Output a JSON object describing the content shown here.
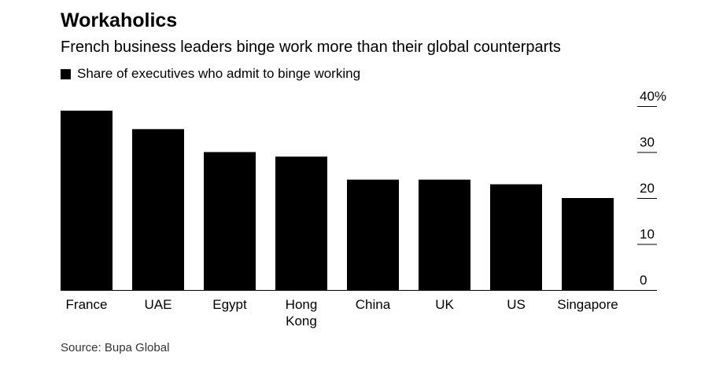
{
  "title": "Workaholics",
  "subtitle": "French business leaders binge work more than their global counterparts",
  "source": "Source: Bupa Global",
  "chart_data": {
    "type": "bar",
    "categories": [
      "France",
      "UAE",
      "Egypt",
      "Hong Kong",
      "China",
      "UK",
      "US",
      "Singapore"
    ],
    "category_lines": [
      [
        "France"
      ],
      [
        "UAE"
      ],
      [
        "Egypt"
      ],
      [
        "Hong",
        "Kong"
      ],
      [
        "China"
      ],
      [
        "UK"
      ],
      [
        "US"
      ],
      [
        "Singapore"
      ]
    ],
    "series": [
      {
        "name": "Share of executives who admit to binge working",
        "values": [
          39,
          35,
          30,
          29,
          24,
          24,
          23,
          20
        ],
        "color": "#000000"
      }
    ],
    "ylim": [
      0,
      40
    ],
    "yticks": [
      0,
      10,
      20,
      30,
      40
    ],
    "ytick_labels": [
      "0",
      "10",
      "20",
      "30",
      "40%"
    ],
    "ylabel": "",
    "xlabel": "",
    "axis_position": "right",
    "grid": false
  }
}
